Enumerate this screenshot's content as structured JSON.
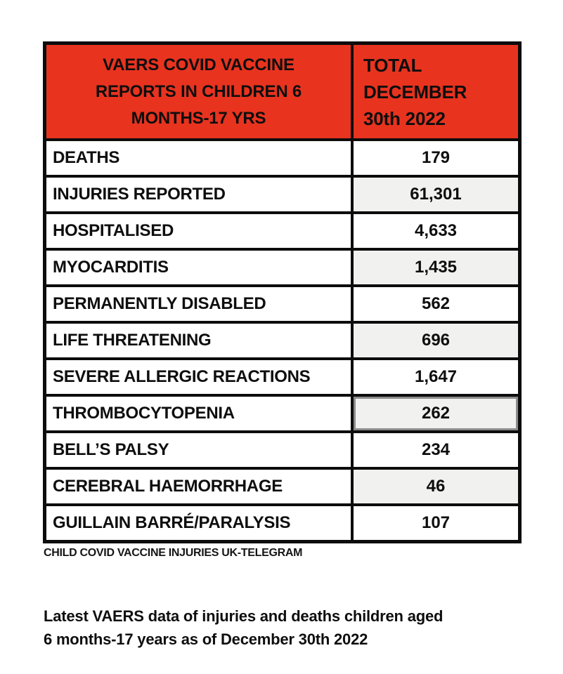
{
  "colors": {
    "header_bg": "#E8331F",
    "border_black": "#0C0C0C",
    "shaded_cell_bg": "#F1F1EF",
    "selected_cell_border": "#8C8C8C",
    "text": "#0E0E0E"
  },
  "table": {
    "header": {
      "title": "VAERS COVID VACCINE\nREPORTS IN CHILDREN 6\nMONTHS-17 YRS",
      "total_column": "TOTAL\nDECEMBER\n30th 2022"
    },
    "rows": [
      {
        "label": "DEATHS",
        "value": "179"
      },
      {
        "label": "INJURIES REPORTED",
        "value": "61,301"
      },
      {
        "label": "HOSPITALISED",
        "value": "4,633"
      },
      {
        "label": "MYOCARDITIS",
        "value": "1,435"
      },
      {
        "label": "PERMANENTLY DISABLED",
        "value": "562"
      },
      {
        "label": "LIFE THREATENING",
        "value": "696"
      },
      {
        "label": "SEVERE ALLERGIC REACTIONS",
        "value": "1,647"
      },
      {
        "label": "THROMBOCYTOPENIA",
        "value": "262"
      },
      {
        "label": "BELL’S PALSY",
        "value": "234"
      },
      {
        "label": "CEREBRAL HAEMORRHAGE",
        "value": "46"
      },
      {
        "label": "GUILLAIN BARRÉ/PARALYSIS",
        "value": "107"
      }
    ]
  },
  "caption": "CHILD COVID VACCINE INJURIES UK-TELEGRAM",
  "footer_note": "Latest VAERS data of injuries and deaths children aged\n6 months-17 years as of December 30th 2022",
  "chart_data": {
    "type": "table",
    "title": "VAERS COVID VACCINE REPORTS IN CHILDREN 6 MONTHS-17 YRS",
    "value_column_header": "TOTAL DECEMBER 30th 2022",
    "categories": [
      "DEATHS",
      "INJURIES REPORTED",
      "HOSPITALISED",
      "MYOCARDITIS",
      "PERMANENTLY DISABLED",
      "LIFE THREATENING",
      "SEVERE ALLERGIC REACTIONS",
      "THROMBOCYTOPENIA",
      "BELL’S PALSY",
      "CEREBRAL HAEMORRHAGE",
      "GUILLAIN BARRÉ/PARALYSIS"
    ],
    "values": [
      179,
      61301,
      4633,
      1435,
      562,
      696,
      1647,
      262,
      234,
      46,
      107
    ],
    "source": "CHILD COVID VACCINE INJURIES UK-TELEGRAM",
    "as_of_date": "December 30th 2022"
  }
}
